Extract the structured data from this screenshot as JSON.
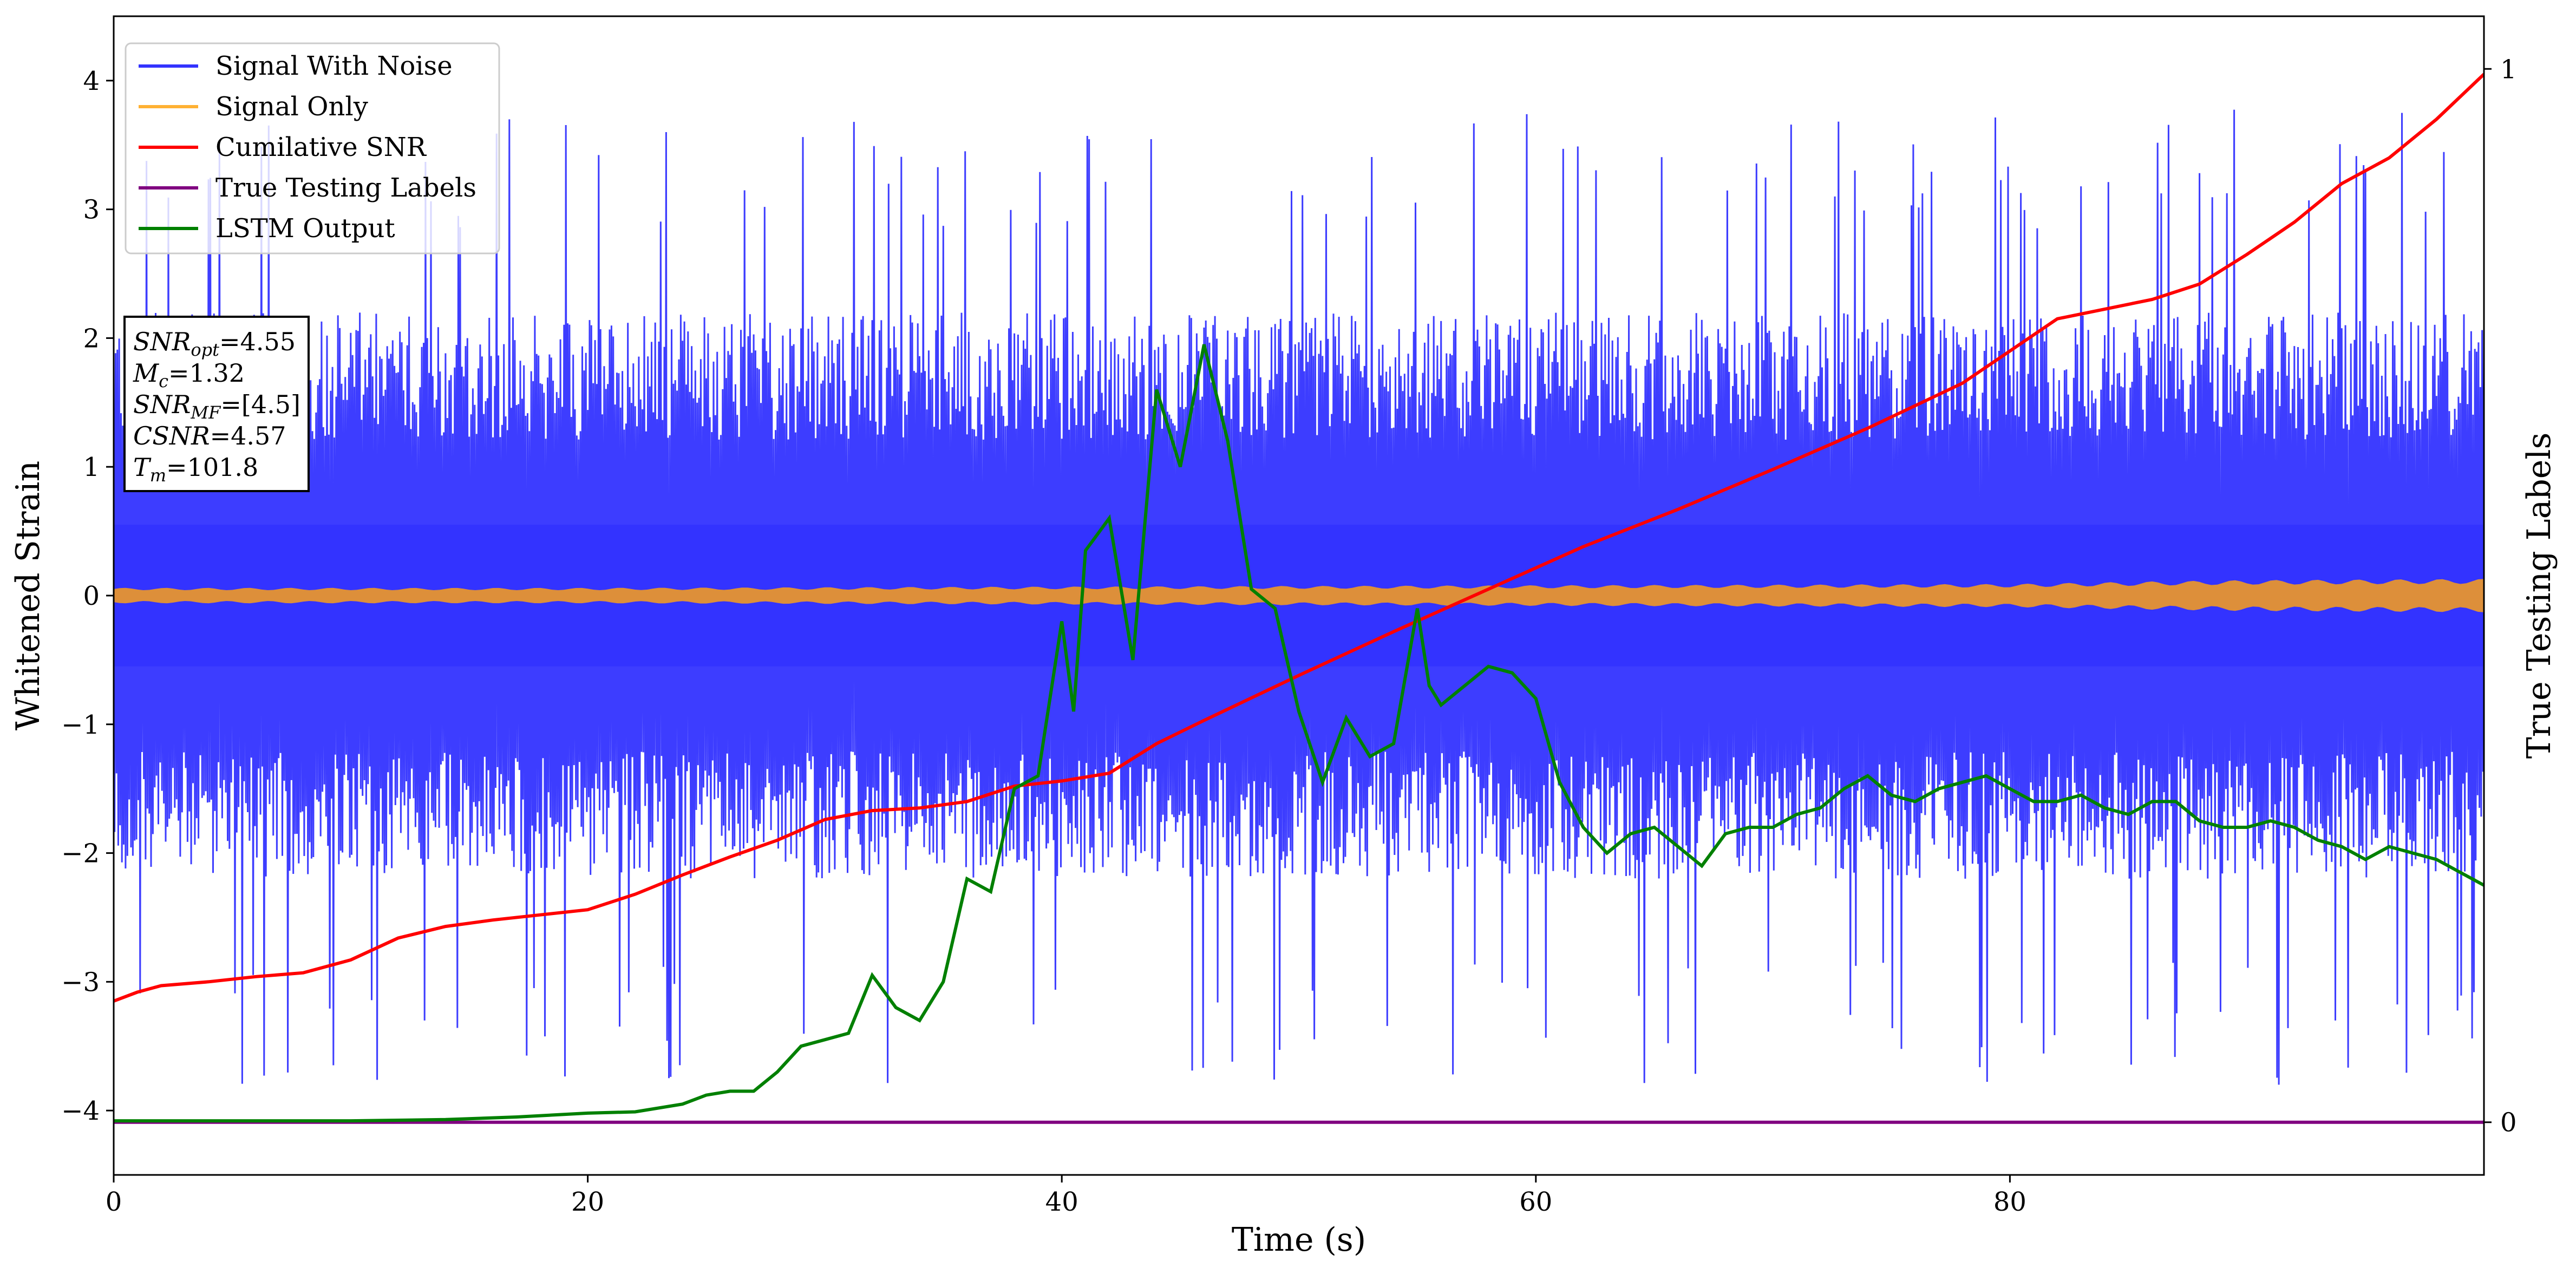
{
  "chart_data": {
    "type": "line",
    "xlabel": "Time (s)",
    "ylabel": "Whitened Strain",
    "y2label": "True Testing Labels",
    "xlim": [
      0,
      100
    ],
    "ylim": [
      -4.5,
      4.5
    ],
    "y2lim": [
      -0.05,
      1.05
    ],
    "x_ticks": [
      0,
      20,
      40,
      60,
      80
    ],
    "y_ticks": [
      -4,
      -3,
      -2,
      -1,
      0,
      1,
      2,
      3,
      4
    ],
    "y2_ticks": [
      0,
      1
    ],
    "grid": false,
    "legend_position": "top-left",
    "info_box": {
      "lines": [
        {
          "label_main": "SNR",
          "label_sub": "opt",
          "value": "=4.55"
        },
        {
          "label_main": "M",
          "label_sub": "c",
          "value": "=1.32"
        },
        {
          "label_main": "SNR",
          "label_sub": "MF",
          "value": "=[4.5]"
        },
        {
          "label_main": "CSNR",
          "label_sub": "",
          "value": "=4.57"
        },
        {
          "label_main": "T",
          "label_sub": "m",
          "value": "=101.8"
        }
      ]
    },
    "series": [
      {
        "name": "Signal With Noise",
        "color": "#3333ff",
        "kind": "noise",
        "axis": "left",
        "typical_range": [
          -2.2,
          2.2
        ],
        "peak_range": [
          -3.9,
          3.8
        ]
      },
      {
        "name": "Signal Only",
        "color": "#ffb133",
        "fill_color": "#dd8f3a",
        "kind": "band",
        "axis": "left",
        "x": [
          0,
          20,
          40,
          60,
          80,
          86,
          90,
          100
        ],
        "amplitude": [
          0.06,
          0.06,
          0.07,
          0.08,
          0.09,
          0.11,
          0.12,
          0.13
        ]
      },
      {
        "name": "Cumilative SNR",
        "color": "#ff0000",
        "axis": "left",
        "x": [
          0,
          1,
          2,
          4,
          6,
          8,
          10,
          12,
          14,
          16,
          18,
          20,
          22,
          24,
          26,
          28,
          30,
          32,
          34,
          36,
          38,
          40,
          42,
          44,
          46,
          50,
          54,
          58,
          62,
          66,
          70,
          74,
          78,
          82,
          86,
          88,
          90,
          92,
          94,
          96,
          98,
          100
        ],
        "y": [
          -3.15,
          -3.08,
          -3.03,
          -3.0,
          -2.96,
          -2.93,
          -2.83,
          -2.66,
          -2.57,
          -2.52,
          -2.48,
          -2.44,
          -2.32,
          -2.17,
          -2.03,
          -1.9,
          -1.74,
          -1.67,
          -1.65,
          -1.6,
          -1.48,
          -1.44,
          -1.38,
          -1.15,
          -0.97,
          -0.62,
          -0.28,
          0.05,
          0.38,
          0.67,
          0.98,
          1.3,
          1.65,
          2.15,
          2.3,
          2.42,
          2.65,
          2.9,
          3.2,
          3.4,
          3.7,
          4.05
        ]
      },
      {
        "name": "True Testing Labels",
        "color": "#800080",
        "axis": "right",
        "x": [
          0,
          100
        ],
        "y": [
          0,
          0
        ]
      },
      {
        "name": "LSTM Output",
        "color": "#008000",
        "axis": "left",
        "x": [
          0,
          10,
          14,
          17,
          20,
          22,
          24,
          25,
          26,
          27,
          28,
          29,
          30,
          31,
          32,
          33,
          34,
          35,
          36,
          37,
          38,
          39,
          40,
          40.5,
          41,
          42,
          43,
          44,
          44.5,
          45,
          46,
          47,
          48,
          49,
          50,
          51,
          52,
          53,
          54,
          55,
          55.5,
          56,
          57,
          58,
          59,
          60,
          61,
          62,
          63,
          64,
          65,
          66,
          67,
          68,
          69,
          70,
          71,
          72,
          73,
          74,
          75,
          76,
          77,
          78,
          79,
          80,
          81,
          82,
          83,
          84,
          85,
          86,
          87,
          88,
          89,
          90,
          91,
          92,
          93,
          94,
          95,
          96,
          97,
          98,
          99,
          100
        ],
        "y": [
          -4.08,
          -4.08,
          -4.07,
          -4.05,
          -4.02,
          -4.01,
          -3.95,
          -3.88,
          -3.85,
          -3.85,
          -3.7,
          -3.5,
          -3.45,
          -3.4,
          -2.95,
          -3.2,
          -3.3,
          -3.0,
          -2.2,
          -2.3,
          -1.5,
          -1.4,
          -0.2,
          -0.9,
          0.35,
          0.6,
          -0.5,
          1.6,
          1.3,
          1.0,
          1.95,
          1.2,
          0.05,
          -0.1,
          -0.9,
          -1.45,
          -0.95,
          -1.25,
          -1.15,
          -0.1,
          -0.7,
          -0.85,
          -0.7,
          -0.55,
          -0.6,
          -0.8,
          -1.45,
          -1.8,
          -2.0,
          -1.85,
          -1.8,
          -1.95,
          -2.1,
          -1.85,
          -1.8,
          -1.8,
          -1.7,
          -1.65,
          -1.5,
          -1.4,
          -1.55,
          -1.6,
          -1.5,
          -1.45,
          -1.4,
          -1.5,
          -1.6,
          -1.6,
          -1.55,
          -1.65,
          -1.7,
          -1.6,
          -1.6,
          -1.75,
          -1.8,
          -1.8,
          -1.75,
          -1.8,
          -1.9,
          -1.95,
          -2.05,
          -1.95,
          -2.0,
          -2.05,
          -2.15,
          -2.25
        ]
      }
    ]
  }
}
